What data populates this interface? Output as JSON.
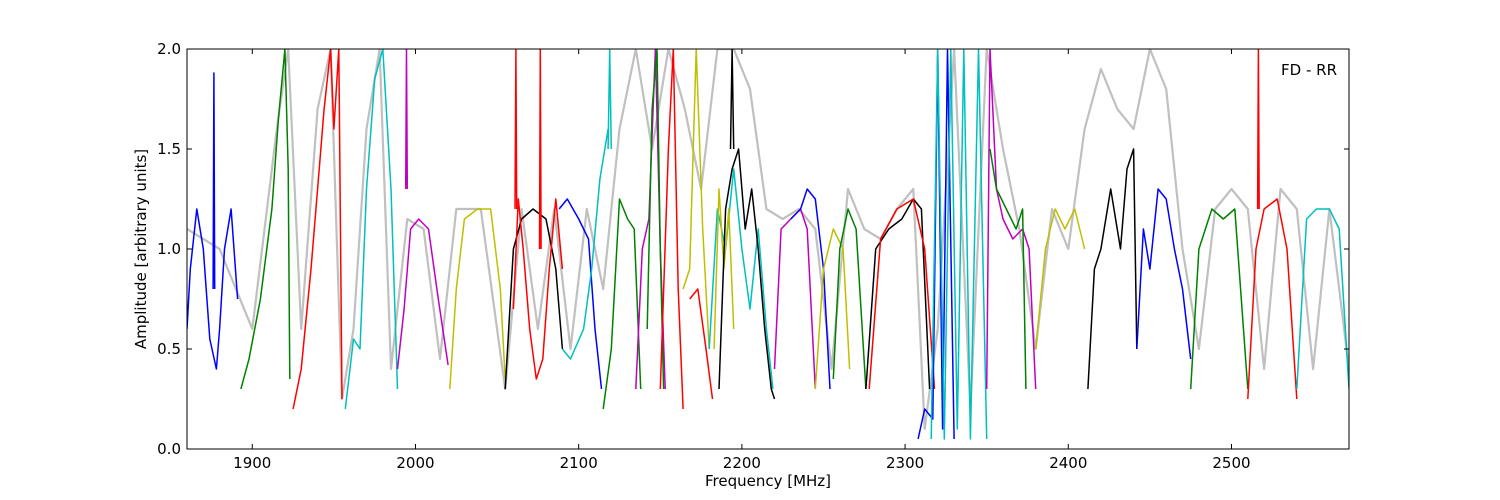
{
  "chart_data": {
    "type": "line",
    "title": "",
    "xlabel": "Frequency [MHz]",
    "ylabel": "Amplitude [arbitrary units]",
    "xlim": [
      1860,
      2572
    ],
    "ylim": [
      0,
      2.0
    ],
    "grid": false,
    "xticks": [
      1900,
      2000,
      2100,
      2200,
      2300,
      2400,
      2500
    ],
    "xtick_labels": [
      "1900",
      "2000",
      "2100",
      "2200",
      "2300",
      "2400",
      "2500"
    ],
    "yticks": [
      0.0,
      0.5,
      1.0,
      1.5,
      2.0
    ],
    "ytick_labels": [
      "0.0",
      "0.5",
      "1.0",
      "1.5",
      "2.0"
    ],
    "annotation": "FD - RR",
    "colors": {
      "background_trace": "#c0c0c0",
      "blue": "#0000ff",
      "green": "#008000",
      "red": "#ff0000",
      "cyan": "#00bfbf",
      "magenta": "#bf00bf",
      "olive": "#bfbf00",
      "black": "#000000"
    },
    "background_trace": {
      "x": [
        1860,
        1880,
        1900,
        1915,
        1922,
        1930,
        1940,
        1948,
        1955,
        1962,
        1970,
        1978,
        1985,
        1995,
        2005,
        2015,
        2025,
        2040,
        2055,
        2065,
        2075,
        2085,
        2095,
        2105,
        2115,
        2125,
        2135,
        2145,
        2155,
        2165,
        2175,
        2185,
        2195,
        2205,
        2215,
        2225,
        2235,
        2245,
        2255,
        2265,
        2275,
        2285,
        2295,
        2305,
        2312,
        2320,
        2330,
        2340,
        2350,
        2360,
        2370,
        2380,
        2390,
        2400,
        2410,
        2420,
        2430,
        2440,
        2450,
        2460,
        2470,
        2480,
        2490,
        2500,
        2510,
        2520,
        2530,
        2540,
        2550,
        2560,
        2572
      ],
      "y": [
        1.1,
        1.0,
        0.6,
        1.6,
        2.0,
        0.6,
        1.7,
        2.0,
        0.25,
        0.6,
        1.6,
        2.0,
        0.4,
        1.15,
        1.1,
        0.45,
        1.2,
        1.2,
        0.3,
        1.2,
        0.6,
        1.2,
        0.5,
        1.2,
        0.8,
        1.6,
        2.0,
        1.5,
        2.0,
        1.7,
        1.3,
        2.0,
        2.0,
        1.8,
        1.2,
        1.15,
        1.2,
        1.1,
        0.4,
        1.3,
        1.1,
        1.05,
        1.2,
        1.3,
        0.1,
        0.6,
        2.0,
        0.2,
        2.0,
        1.5,
        1.1,
        0.5,
        1.2,
        1.0,
        1.6,
        1.9,
        1.7,
        1.6,
        2.0,
        1.8,
        1.0,
        0.5,
        1.2,
        1.3,
        1.2,
        0.4,
        1.3,
        1.2,
        0.4,
        1.2,
        0.4
      ]
    },
    "series": [
      {
        "color": "blue",
        "x": [
          1860,
          1862,
          1866,
          1870,
          1874,
          1878,
          1880,
          1883,
          1887,
          1891
        ],
        "y": [
          0.6,
          0.9,
          1.2,
          1.0,
          0.55,
          0.4,
          0.6,
          1.0,
          1.2,
          0.75
        ]
      },
      {
        "color": "blue",
        "x": [
          1876,
          1876.5,
          1877
        ],
        "y": [
          0.8,
          1.88,
          0.8
        ]
      },
      {
        "color": "green",
        "x": [
          1893,
          1898,
          1905,
          1912,
          1916,
          1920,
          1922,
          1923
        ],
        "y": [
          0.3,
          0.45,
          0.75,
          1.2,
          1.65,
          2.0,
          1.4,
          0.35
        ]
      },
      {
        "color": "red",
        "x": [
          1925,
          1930,
          1936,
          1940,
          1944,
          1948,
          1950,
          1953,
          1955
        ],
        "y": [
          0.2,
          0.4,
          0.9,
          1.3,
          1.7,
          2.0,
          1.6,
          2.0,
          0.25
        ]
      },
      {
        "color": "cyan",
        "x": [
          1957,
          1962,
          1966,
          1970,
          1975,
          1980,
          1985,
          1989
        ],
        "y": [
          0.2,
          0.55,
          0.5,
          1.3,
          1.85,
          2.0,
          1.3,
          0.3
        ]
      },
      {
        "color": "magenta",
        "x": [
          1989,
          1993,
          1997,
          2002,
          2008,
          2014,
          2020
        ],
        "y": [
          0.4,
          0.7,
          1.1,
          1.15,
          1.1,
          0.75,
          0.42
        ]
      },
      {
        "color": "magenta",
        "x": [
          1994,
          1994.5,
          1995
        ],
        "y": [
          1.3,
          2.0,
          1.3
        ]
      },
      {
        "color": "olive",
        "x": [
          2021,
          2025,
          2030,
          2038,
          2046,
          2052,
          2055
        ],
        "y": [
          0.3,
          0.8,
          1.15,
          1.2,
          1.2,
          0.8,
          0.35
        ]
      },
      {
        "color": "black",
        "x": [
          2055,
          2060,
          2065,
          2072,
          2080,
          2086,
          2090
        ],
        "y": [
          0.3,
          1.0,
          1.15,
          1.2,
          1.15,
          0.9,
          0.5
        ]
      },
      {
        "color": "red",
        "x": [
          2060,
          2063,
          2066,
          2070,
          2074,
          2078,
          2082,
          2086,
          2090
        ],
        "y": [
          0.7,
          1.25,
          1.0,
          0.6,
          0.35,
          0.45,
          0.9,
          1.25,
          0.9
        ]
      },
      {
        "color": "red",
        "x": [
          2061,
          2061.5,
          2062
        ],
        "y": [
          1.2,
          2.0,
          1.2
        ]
      },
      {
        "color": "red",
        "x": [
          2076,
          2076.5,
          2077
        ],
        "y": [
          1.0,
          2.0,
          1.0
        ]
      },
      {
        "color": "blue",
        "x": [
          2088,
          2093,
          2100,
          2106,
          2110,
          2114
        ],
        "y": [
          1.2,
          1.25,
          1.15,
          1.05,
          0.6,
          0.3
        ]
      },
      {
        "color": "cyan",
        "x": [
          2090,
          2095,
          2103,
          2108,
          2113,
          2118
        ],
        "y": [
          0.5,
          0.45,
          0.6,
          0.9,
          1.35,
          1.6
        ]
      },
      {
        "color": "cyan",
        "x": [
          2118,
          2119,
          2120
        ],
        "y": [
          1.5,
          2.0,
          1.5
        ]
      },
      {
        "color": "green",
        "x": [
          2115,
          2120,
          2125,
          2130,
          2134,
          2138
        ],
        "y": [
          0.2,
          0.5,
          1.25,
          1.15,
          1.1,
          0.3
        ]
      },
      {
        "color": "magenta",
        "x": [
          2135,
          2139,
          2143,
          2147,
          2150,
          2153
        ],
        "y": [
          0.3,
          1.0,
          1.15,
          2.0,
          1.0,
          0.3
        ]
      },
      {
        "color": "green",
        "x": [
          2142,
          2145,
          2148,
          2150,
          2152
        ],
        "y": [
          0.6,
          1.7,
          2.0,
          1.0,
          0.3
        ]
      },
      {
        "color": "red",
        "x": [
          2150,
          2155,
          2158,
          2161,
          2164
        ],
        "y": [
          0.3,
          1.5,
          2.0,
          0.8,
          0.2
        ]
      },
      {
        "color": "olive",
        "x": [
          2164,
          2168,
          2172,
          2176,
          2180
        ],
        "y": [
          0.8,
          0.9,
          2.0,
          1.1,
          0.5
        ]
      },
      {
        "color": "red",
        "x": [
          2168,
          2173,
          2178,
          2182
        ],
        "y": [
          0.75,
          0.8,
          0.5,
          0.25
        ]
      },
      {
        "color": "cyan",
        "x": [
          2180,
          2185,
          2190,
          2195,
          2200,
          2205,
          2210,
          2215,
          2219
        ],
        "y": [
          0.5,
          1.2,
          1.0,
          1.4,
          1.0,
          0.7,
          1.1,
          0.6,
          0.3
        ]
      },
      {
        "color": "olive",
        "x": [
          2183,
          2186,
          2189,
          2192,
          2195
        ],
        "y": [
          0.5,
          1.3,
          0.9,
          1.2,
          0.6
        ]
      },
      {
        "color": "black",
        "x": [
          2186,
          2190,
          2194,
          2198,
          2202,
          2206,
          2210,
          2214,
          2218,
          2220
        ],
        "y": [
          0.3,
          1.2,
          1.4,
          1.5,
          1.1,
          1.3,
          1.0,
          0.6,
          0.3,
          0.25
        ]
      },
      {
        "color": "black",
        "x": [
          2193,
          2194,
          2195
        ],
        "y": [
          1.5,
          2.0,
          1.5
        ]
      },
      {
        "color": "magenta",
        "x": [
          2220,
          2224,
          2230,
          2236,
          2240,
          2245
        ],
        "y": [
          0.4,
          1.1,
          1.15,
          1.2,
          1.1,
          0.3
        ]
      },
      {
        "color": "blue",
        "x": [
          2230,
          2236,
          2240,
          2245,
          2250,
          2254
        ],
        "y": [
          1.15,
          1.2,
          1.3,
          1.25,
          0.9,
          0.3
        ]
      },
      {
        "color": "olive",
        "x": [
          2245,
          2250,
          2256,
          2262,
          2266
        ],
        "y": [
          0.3,
          0.9,
          1.1,
          1.0,
          0.4
        ]
      },
      {
        "color": "green",
        "x": [
          2256,
          2260,
          2265,
          2270,
          2276
        ],
        "y": [
          0.35,
          1.0,
          1.2,
          1.1,
          0.3
        ]
      },
      {
        "color": "black",
        "x": [
          2276,
          2282,
          2290,
          2298,
          2305,
          2310,
          2315
        ],
        "y": [
          0.3,
          1.0,
          1.1,
          1.15,
          1.25,
          1.2,
          0.3
        ]
      },
      {
        "color": "red",
        "x": [
          2278,
          2285,
          2295,
          2305,
          2312,
          2318
        ],
        "y": [
          0.3,
          1.05,
          1.2,
          1.25,
          1.0,
          0.3
        ]
      },
      {
        "color": "blue",
        "x": [
          2308,
          2312,
          2317,
          2320,
          2323,
          2326,
          2330
        ],
        "y": [
          0.05,
          0.2,
          0.15,
          2.0,
          0.1,
          2.0,
          0.05
        ]
      },
      {
        "color": "cyan",
        "x": [
          2316,
          2320,
          2324,
          2328,
          2332,
          2336,
          2340,
          2345,
          2350
        ],
        "y": [
          0.05,
          2.0,
          0.05,
          2.0,
          0.1,
          2.0,
          0.05,
          2.0,
          0.05
        ]
      },
      {
        "color": "magenta",
        "x": [
          2350,
          2352,
          2356,
          2360,
          2366,
          2372,
          2376,
          2380
        ],
        "y": [
          0.3,
          2.0,
          1.3,
          1.15,
          1.05,
          1.1,
          1.0,
          0.3
        ]
      },
      {
        "color": "green",
        "x": [
          2352,
          2356,
          2362,
          2368,
          2372,
          2374
        ],
        "y": [
          1.5,
          1.3,
          1.2,
          1.1,
          1.2,
          0.3
        ]
      },
      {
        "color": "olive",
        "x": [
          2380,
          2386,
          2392,
          2398,
          2404,
          2410
        ],
        "y": [
          0.5,
          1.0,
          1.2,
          1.1,
          1.2,
          1.0
        ]
      },
      {
        "color": "black",
        "x": [
          2412,
          2416,
          2420,
          2426,
          2432,
          2436,
          2440,
          2442
        ],
        "y": [
          0.3,
          0.9,
          1.0,
          1.3,
          1.0,
          1.4,
          1.5,
          0.5
        ]
      },
      {
        "color": "blue",
        "x": [
          2442,
          2446,
          2450,
          2455,
          2460,
          2465,
          2470,
          2475
        ],
        "y": [
          0.5,
          1.1,
          0.9,
          1.3,
          1.25,
          1.0,
          0.8,
          0.45
        ]
      },
      {
        "color": "green",
        "x": [
          2475,
          2480,
          2488,
          2495,
          2502,
          2510
        ],
        "y": [
          0.3,
          1.0,
          1.2,
          1.15,
          1.2,
          0.3
        ]
      },
      {
        "color": "red",
        "x": [
          2510,
          2515,
          2520,
          2528,
          2534,
          2540
        ],
        "y": [
          0.25,
          1.0,
          1.2,
          1.25,
          1.0,
          0.25
        ]
      },
      {
        "color": "red",
        "x": [
          2516,
          2516.5,
          2517
        ],
        "y": [
          1.2,
          2.0,
          1.2
        ]
      },
      {
        "color": "cyan",
        "x": [
          2540,
          2546,
          2552,
          2560,
          2566,
          2572
        ],
        "y": [
          0.3,
          1.15,
          1.2,
          1.2,
          1.1,
          0.3
        ]
      }
    ]
  }
}
